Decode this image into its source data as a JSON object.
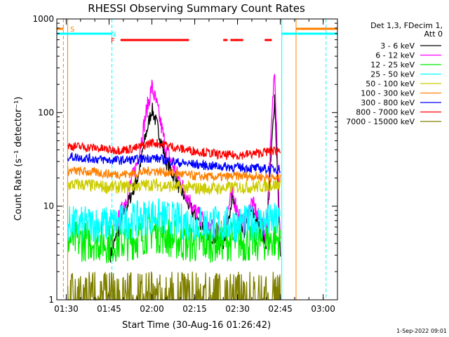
{
  "chart_data": {
    "type": "line",
    "title": "RHESSI Observing Summary Count Rates",
    "xlabel": "Start Time (30-Aug-16 01:26:42)",
    "ylabel": "Count Rate (s⁻¹ detector⁻¹)",
    "xlim": [
      "01:26:42",
      "03:05:00"
    ],
    "ylim": [
      1,
      1000
    ],
    "yscale": "log",
    "x_ticks": [
      "01:30",
      "01:45",
      "02:00",
      "02:15",
      "02:30",
      "02:45",
      "03:00"
    ],
    "y_ticks": [
      "1",
      "10",
      "100",
      "1000"
    ],
    "legend_title": [
      "Det 1,3, FDecim 1,",
      "Att 0"
    ],
    "legend_placement": "right",
    "footer": "1-Sep-2022 09:01",
    "series": [
      {
        "name": "3 - 6 keV",
        "color": "#000000",
        "x": [
          "01:45:30",
          "01:50",
          "01:55",
          "01:58",
          "02:00",
          "02:02",
          "02:05",
          "02:10",
          "02:15",
          "02:20",
          "02:25",
          "02:28",
          "02:32",
          "02:35",
          "02:40",
          "02:43",
          "02:45"
        ],
        "y": [
          3,
          8,
          20,
          60,
          110,
          70,
          30,
          15,
          8,
          5,
          4,
          12,
          5,
          9,
          4,
          150,
          3
        ]
      },
      {
        "name": "6 - 12 keV",
        "color": "#ff00ff",
        "x": [
          "01:45:30",
          "01:50",
          "01:55",
          "01:58",
          "02:00",
          "02:02",
          "02:05",
          "02:10",
          "02:15",
          "02:20",
          "02:25",
          "02:28",
          "02:32",
          "02:35",
          "02:40",
          "02:43",
          "02:45"
        ],
        "y": [
          4,
          10,
          30,
          100,
          190,
          110,
          40,
          18,
          9,
          6,
          5,
          14,
          6,
          11,
          5,
          320,
          4
        ]
      },
      {
        "name": "12 - 25 keV",
        "color": "#00ee00",
        "x": [
          "01:30:30",
          "01:35",
          "01:40",
          "01:45",
          "01:50",
          "01:55",
          "02:00",
          "02:05",
          "02:10",
          "02:15",
          "02:20",
          "02:25",
          "02:30",
          "02:35",
          "02:40",
          "02:45"
        ],
        "y": [
          4.5,
          4.2,
          4.3,
          4.0,
          4.2,
          4.5,
          5.5,
          4.8,
          4.2,
          4.0,
          4.1,
          4.3,
          4.2,
          4.1,
          4.3,
          4.4
        ]
      },
      {
        "name": "25 - 50 keV",
        "color": "#00ffff",
        "x": [
          "01:30:30",
          "01:35",
          "01:40",
          "01:45",
          "01:50",
          "01:55",
          "02:00",
          "02:05",
          "02:10",
          "02:15",
          "02:20",
          "02:25",
          "02:30",
          "02:35",
          "02:40",
          "02:45"
        ],
        "y": [
          6.5,
          6.3,
          6.5,
          6.4,
          6.8,
          7.2,
          8.0,
          7.4,
          6.9,
          6.6,
          6.5,
          6.4,
          6.5,
          6.6,
          6.8,
          7.0
        ]
      },
      {
        "name": "50 - 100 keV",
        "color": "#cccc00",
        "x": [
          "01:30:30",
          "01:35",
          "01:40",
          "01:45",
          "01:50",
          "01:55",
          "02:00",
          "02:05",
          "02:10",
          "02:15",
          "02:20",
          "02:25",
          "02:30",
          "02:35",
          "02:40",
          "02:45"
        ],
        "y": [
          17,
          17,
          16.5,
          16,
          16,
          16.5,
          17,
          16.5,
          16,
          15.5,
          15.5,
          15.5,
          16,
          16,
          16.5,
          17
        ]
      },
      {
        "name": "100 - 300 keV",
        "color": "#ff8000",
        "x": [
          "01:30:30",
          "01:35",
          "01:40",
          "01:45",
          "01:50",
          "01:55",
          "02:00",
          "02:05",
          "02:10",
          "02:15",
          "02:20",
          "02:25",
          "02:30",
          "02:35",
          "02:40",
          "02:45"
        ],
        "y": [
          24,
          23.5,
          23,
          22,
          22,
          22.5,
          24,
          23,
          22,
          21,
          20.5,
          20.5,
          21,
          21,
          20.5,
          19.5
        ]
      },
      {
        "name": "300 - 800 keV",
        "color": "#0000ff",
        "x": [
          "01:30:30",
          "01:35",
          "01:40",
          "01:45",
          "01:50",
          "01:55",
          "02:00",
          "02:05",
          "02:10",
          "02:15",
          "02:20",
          "02:25",
          "02:30",
          "02:35",
          "02:40",
          "02:45"
        ],
        "y": [
          34,
          33,
          32,
          31,
          31,
          31.5,
          33,
          31,
          29,
          28,
          27,
          26.5,
          26,
          25.5,
          25,
          25
        ]
      },
      {
        "name": "800 - 7000 keV",
        "color": "#ff0000",
        "x": [
          "01:30:30",
          "01:35",
          "01:40",
          "01:45",
          "01:50",
          "01:55",
          "02:00",
          "02:05",
          "02:10",
          "02:15",
          "02:20",
          "02:25",
          "02:30",
          "02:35",
          "02:40",
          "02:45"
        ],
        "y": [
          44,
          43,
          42,
          40,
          40,
          42,
          48,
          45,
          41,
          39,
          37,
          35,
          35,
          36,
          38,
          40
        ]
      },
      {
        "name": "7000 - 15000 keV",
        "color": "#808000",
        "x": [
          "01:30:30",
          "01:40",
          "01:50",
          "01:55",
          "02:00",
          "02:05",
          "02:10",
          "02:20",
          "02:30",
          "02:40",
          "02:45"
        ],
        "y": [
          1,
          1.5,
          1.6,
          1.8,
          1.9,
          1.7,
          1.5,
          1.4,
          1.4,
          1.5,
          1.8
        ]
      }
    ],
    "annotations": [
      {
        "label": "S",
        "color": "#ff8000",
        "spans": [
          [
            "01:26:42",
            "01:29:00"
          ],
          [
            "02:50:30",
            "03:05:00"
          ]
        ]
      },
      {
        "label": "N",
        "color": "#00ffff",
        "spans": [
          [
            "01:26:42",
            "01:46:00"
          ],
          [
            "02:45:30",
            "03:05:00"
          ]
        ]
      },
      {
        "label": "F",
        "color": "#ff0000",
        "spans": [
          [
            "01:49:00",
            "02:13:00"
          ],
          [
            "02:25:00",
            "02:26:30"
          ],
          [
            "02:27:30",
            "02:32:00"
          ],
          [
            "02:39:30",
            "02:42:00"
          ]
        ]
      }
    ],
    "vertical_lines": [
      {
        "time": "01:29:00",
        "color": "#ff8000",
        "style": "dashed"
      },
      {
        "time": "01:30:30",
        "color": "#ff8000",
        "style": "solid"
      },
      {
        "time": "01:46:00",
        "color": "#00ffff",
        "style": "dashed"
      },
      {
        "time": "02:45:30",
        "color": "#00ffff",
        "style": "solid"
      },
      {
        "time": "02:50:30",
        "color": "#ff8000",
        "style": "solid"
      },
      {
        "time": "03:01:00",
        "color": "#00ffff",
        "style": "dashed"
      }
    ]
  }
}
